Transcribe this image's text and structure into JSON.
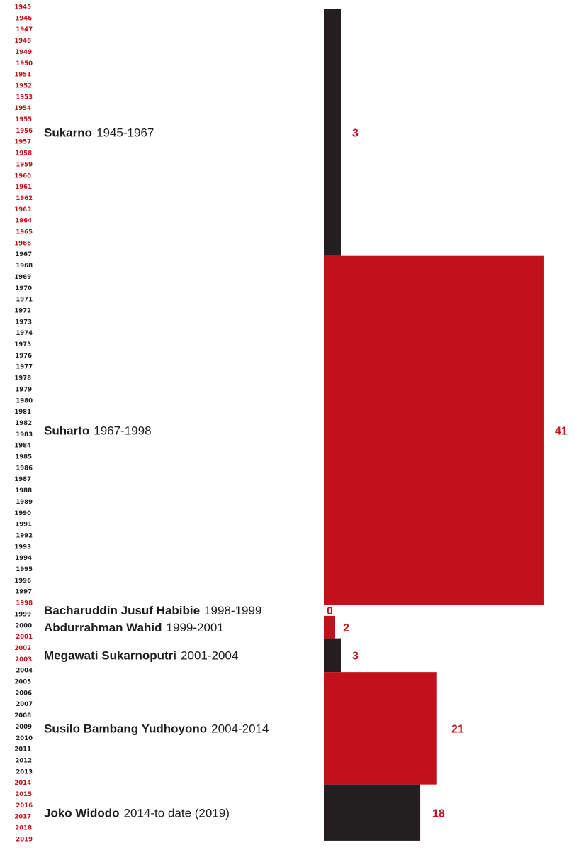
{
  "colors": {
    "red": "#c1121b",
    "dark": "#231f20",
    "text": "#1e1e1e"
  },
  "chart_data": {
    "type": "bar",
    "orientation": "horizontal",
    "grid": false,
    "legend": "none",
    "year_range": [
      1945,
      2019
    ],
    "xlim": [
      0,
      41
    ],
    "series": [
      {
        "name": "Sukarno",
        "term": "1945-1967",
        "start": 1945,
        "end": 1967,
        "value": 3,
        "color": "dark"
      },
      {
        "name": "Suharto",
        "term": "1967-1998",
        "start": 1967,
        "end": 1998,
        "value": 41,
        "color": "red"
      },
      {
        "name": "Bacharuddin Jusuf Habibie",
        "term": "1998-1999",
        "start": 1998,
        "end": 1999,
        "value": 0,
        "color": "dark"
      },
      {
        "name": "Abdurrahman Wahid",
        "term": "1999-2001",
        "start": 1999,
        "end": 2001,
        "value": 2,
        "color": "red"
      },
      {
        "name": "Megawati Sukarnoputri",
        "term": "2001-2004",
        "start": 2001,
        "end": 2004,
        "value": 3,
        "color": "dark"
      },
      {
        "name": "Susilo Bambang Yudhoyono",
        "term": "2004-2014",
        "start": 2004,
        "end": 2014,
        "value": 21,
        "color": "red"
      },
      {
        "name": "Joko Widodo",
        "term": "2014-to date (2019)",
        "start": 2014,
        "end": 2019,
        "value": 18,
        "color": "dark"
      }
    ]
  }
}
